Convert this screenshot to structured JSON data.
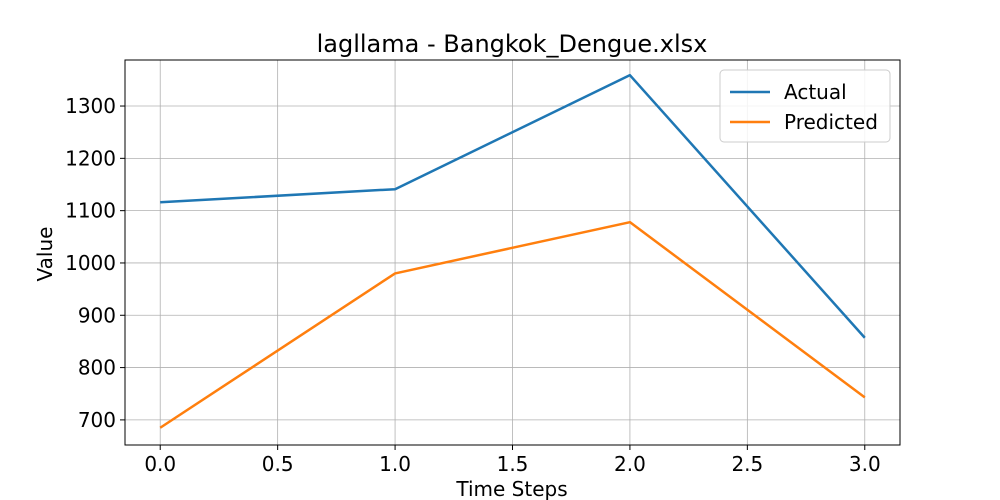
{
  "chart_data": {
    "type": "line",
    "title": "lagllama - Bangkok_Dengue.xlsx",
    "xlabel": "Time Steps",
    "ylabel": "Value",
    "x": [
      0,
      1,
      2,
      3
    ],
    "series": [
      {
        "name": "Actual",
        "color": "#1f77b4",
        "values": [
          1116,
          1141,
          1359,
          857
        ]
      },
      {
        "name": "Predicted",
        "color": "#ff7f0e",
        "values": [
          685,
          980,
          1078,
          743
        ]
      }
    ],
    "xlim": [
      -0.15,
      3.15
    ],
    "ylim": [
      652,
      1388
    ],
    "xticks": [
      0.0,
      0.5,
      1.0,
      1.5,
      2.0,
      2.5,
      3.0
    ],
    "xtick_labels": [
      "0.0",
      "0.5",
      "1.0",
      "1.5",
      "2.0",
      "2.5",
      "3.0"
    ],
    "yticks": [
      700,
      800,
      900,
      1000,
      1100,
      1200,
      1300
    ],
    "ytick_labels": [
      "700",
      "800",
      "900",
      "1000",
      "1100",
      "1200",
      "1300"
    ],
    "grid": true,
    "legend_position": "top-right"
  }
}
